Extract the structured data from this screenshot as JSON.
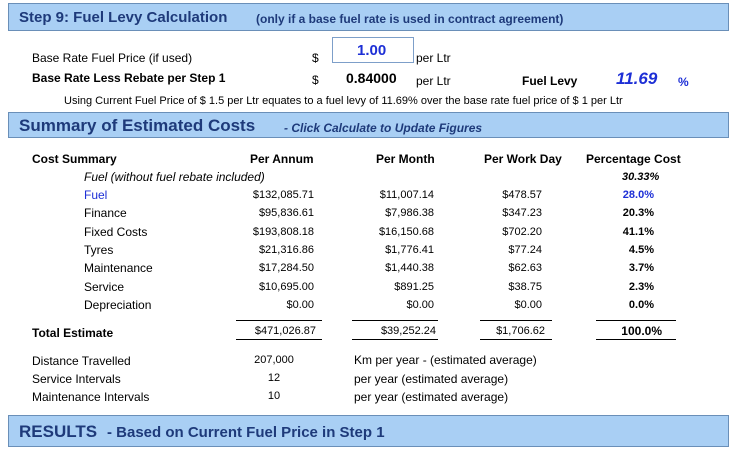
{
  "step9": {
    "title": "Step 9: Fuel Levy Calculation",
    "subtitle": "(only if a base fuel rate is used in contract agreement)",
    "base_rate_label": "Base Rate Fuel Price (if used)",
    "base_rate_currency": "$",
    "base_rate_value": "1.00",
    "base_rate_unit": "per Ltr",
    "less_rebate_label": "Base Rate Less Rebate per Step 1",
    "less_rebate_currency": "$",
    "less_rebate_value": "0.84000",
    "less_rebate_unit": "per Ltr",
    "fuel_levy_label": "Fuel Levy",
    "fuel_levy_value": "11.69",
    "fuel_levy_unit": "%",
    "note": "Using Current Fuel Price of $ 1.5 per Ltr equates to a fuel levy of 11.69% over the base rate fuel price of $ 1 per Ltr"
  },
  "summary": {
    "title": "Summary of Estimated Costs",
    "subtitle": "- Click Calculate to Update Figures",
    "headers": {
      "label": "Cost Summary",
      "annum": "Per Annum",
      "month": "Per Month",
      "workday": "Per Work Day",
      "pct": "Percentage Cost"
    },
    "fuel_note": "Fuel (without fuel rebate included)",
    "fuel_note_pct": "30.33%",
    "rows": [
      {
        "label": "Fuel",
        "annum": "$132,085.71",
        "month": "$11,007.14",
        "workday": "$478.57",
        "pct": "28.0%"
      },
      {
        "label": "Finance",
        "annum": "$95,836.61",
        "month": "$7,986.38",
        "workday": "$347.23",
        "pct": "20.3%"
      },
      {
        "label": "Fixed Costs",
        "annum": "$193,808.18",
        "month": "$16,150.68",
        "workday": "$702.20",
        "pct": "41.1%"
      },
      {
        "label": "Tyres",
        "annum": "$21,316.86",
        "month": "$1,776.41",
        "workday": "$77.24",
        "pct": "4.5%"
      },
      {
        "label": "Maintenance",
        "annum": "$17,284.50",
        "month": "$1,440.38",
        "workday": "$62.63",
        "pct": "3.7%"
      },
      {
        "label": "Service",
        "annum": "$10,695.00",
        "month": "$891.25",
        "workday": "$38.75",
        "pct": "2.3%"
      },
      {
        "label": "Depreciation",
        "annum": "$0.00",
        "month": "$0.00",
        "workday": "$0.00",
        "pct": "0.0%"
      }
    ],
    "total": {
      "label": "Total Estimate",
      "annum": "$471,026.87",
      "month": "$39,252.24",
      "workday": "$1,706.62",
      "pct": "100.0%"
    },
    "stats": [
      {
        "label": "Distance Travelled",
        "value": "207,000",
        "desc": "Km per year - (estimated average)"
      },
      {
        "label": "Service Intervals",
        "value": "12",
        "desc": "per year (estimated average)"
      },
      {
        "label": "Maintenance Intervals",
        "value": "10",
        "desc": "per year (estimated average)"
      }
    ]
  },
  "results": {
    "title": "RESULTS",
    "subtitle": "- Based on Current Fuel Price in Step 1"
  },
  "colors": {
    "bar_bg": "#a9cff4",
    "title_text": "#1e3a7a",
    "accent_blue": "#1d2fd6"
  }
}
